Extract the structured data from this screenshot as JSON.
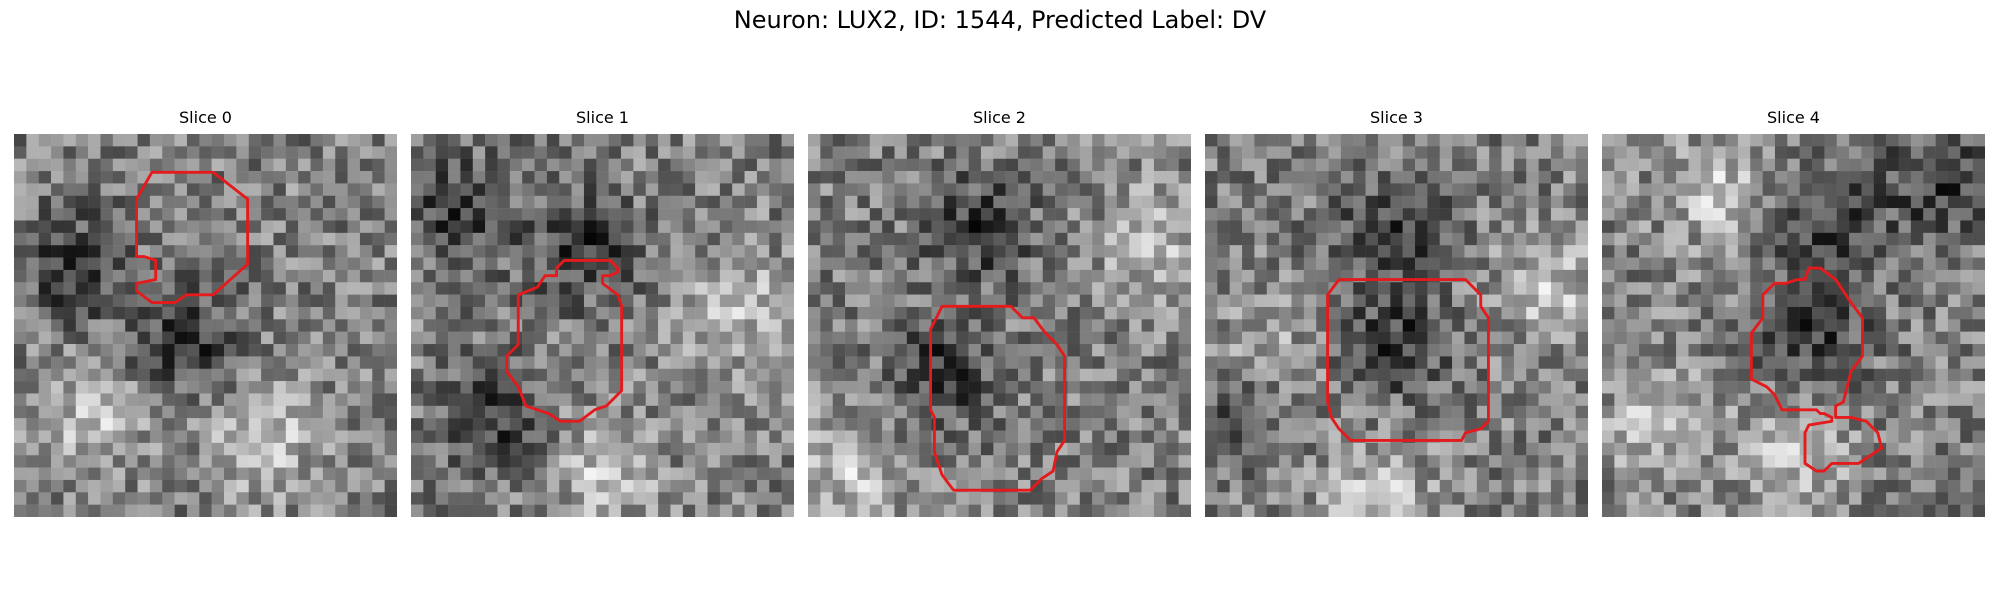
{
  "figure": {
    "title": "Neuron: LUX2, ID: 1544, Predicted Label: DV"
  },
  "contour_color": "#e41a1c",
  "colormap": "gray",
  "panels": [
    {
      "title": "Slice 0",
      "seed": 11,
      "dark_centers": [
        [
          0.45,
          0.55
        ],
        [
          0.15,
          0.35
        ]
      ],
      "light_centers": [
        [
          0.65,
          0.8
        ],
        [
          0.2,
          0.75
        ]
      ],
      "contour": [
        [
          0.36,
          0.1
        ],
        [
          0.52,
          0.1
        ],
        [
          0.61,
          0.17
        ],
        [
          0.61,
          0.34
        ],
        [
          0.52,
          0.42
        ],
        [
          0.45,
          0.42
        ],
        [
          0.42,
          0.44
        ],
        [
          0.36,
          0.44
        ],
        [
          0.32,
          0.41
        ],
        [
          0.32,
          0.39
        ],
        [
          0.37,
          0.38
        ],
        [
          0.37,
          0.33
        ],
        [
          0.34,
          0.32
        ],
        [
          0.32,
          0.32
        ],
        [
          0.32,
          0.17
        ]
      ]
    },
    {
      "title": "Slice 1",
      "seed": 23,
      "dark_centers": [
        [
          0.45,
          0.3
        ],
        [
          0.12,
          0.2
        ],
        [
          0.2,
          0.75
        ]
      ],
      "light_centers": [
        [
          0.85,
          0.45
        ],
        [
          0.5,
          0.88
        ]
      ],
      "contour": [
        [
          0.33,
          0.4
        ],
        [
          0.35,
          0.37
        ],
        [
          0.38,
          0.37
        ],
        [
          0.38,
          0.35
        ],
        [
          0.4,
          0.33
        ],
        [
          0.52,
          0.33
        ],
        [
          0.54,
          0.35
        ],
        [
          0.54,
          0.36
        ],
        [
          0.52,
          0.37
        ],
        [
          0.5,
          0.37
        ],
        [
          0.5,
          0.39
        ],
        [
          0.54,
          0.42
        ],
        [
          0.55,
          0.45
        ],
        [
          0.55,
          0.67
        ],
        [
          0.51,
          0.71
        ],
        [
          0.48,
          0.72
        ],
        [
          0.44,
          0.75
        ],
        [
          0.39,
          0.75
        ],
        [
          0.36,
          0.73
        ],
        [
          0.3,
          0.71
        ],
        [
          0.28,
          0.66
        ],
        [
          0.25,
          0.62
        ],
        [
          0.25,
          0.58
        ],
        [
          0.28,
          0.55
        ],
        [
          0.28,
          0.42
        ]
      ]
    },
    {
      "title": "Slice 2",
      "seed": 37,
      "dark_centers": [
        [
          0.45,
          0.25
        ],
        [
          0.35,
          0.62
        ]
      ],
      "light_centers": [
        [
          0.9,
          0.3
        ],
        [
          0.1,
          0.88
        ]
      ],
      "contour": [
        [
          0.35,
          0.45
        ],
        [
          0.38,
          0.45
        ],
        [
          0.41,
          0.45
        ],
        [
          0.53,
          0.45
        ],
        [
          0.56,
          0.48
        ],
        [
          0.59,
          0.48
        ],
        [
          0.62,
          0.52
        ],
        [
          0.65,
          0.55
        ],
        [
          0.67,
          0.58
        ],
        [
          0.67,
          0.8
        ],
        [
          0.65,
          0.83
        ],
        [
          0.64,
          0.88
        ],
        [
          0.61,
          0.9
        ],
        [
          0.58,
          0.93
        ],
        [
          0.44,
          0.93
        ],
        [
          0.38,
          0.93
        ],
        [
          0.35,
          0.89
        ],
        [
          0.33,
          0.83
        ],
        [
          0.33,
          0.74
        ],
        [
          0.32,
          0.72
        ],
        [
          0.32,
          0.51
        ]
      ]
    },
    {
      "title": "Slice 3",
      "seed": 41,
      "dark_centers": [
        [
          0.5,
          0.55
        ],
        [
          0.48,
          0.25
        ],
        [
          0.1,
          0.7
        ]
      ],
      "light_centers": [
        [
          0.45,
          0.95
        ],
        [
          0.15,
          0.6
        ],
        [
          0.9,
          0.4
        ]
      ],
      "contour": [
        [
          0.32,
          0.42
        ],
        [
          0.35,
          0.38
        ],
        [
          0.38,
          0.38
        ],
        [
          0.68,
          0.38
        ],
        [
          0.72,
          0.42
        ],
        [
          0.72,
          0.45
        ],
        [
          0.74,
          0.48
        ],
        [
          0.74,
          0.75
        ],
        [
          0.72,
          0.77
        ],
        [
          0.68,
          0.78
        ],
        [
          0.67,
          0.8
        ],
        [
          0.38,
          0.8
        ],
        [
          0.35,
          0.77
        ],
        [
          0.33,
          0.74
        ],
        [
          0.32,
          0.7
        ]
      ]
    },
    {
      "title": "Slice 4",
      "seed": 53,
      "dark_centers": [
        [
          0.55,
          0.5
        ],
        [
          0.88,
          0.12
        ],
        [
          0.6,
          0.25
        ]
      ],
      "light_centers": [
        [
          0.15,
          0.75
        ],
        [
          0.5,
          0.85
        ],
        [
          0.3,
          0.15
        ]
      ],
      "contour": [
        [
          0.42,
          0.42
        ],
        [
          0.45,
          0.39
        ],
        [
          0.48,
          0.39
        ],
        [
          0.51,
          0.38
        ],
        [
          0.53,
          0.38
        ],
        [
          0.54,
          0.35
        ],
        [
          0.57,
          0.35
        ],
        [
          0.61,
          0.38
        ],
        [
          0.65,
          0.44
        ],
        [
          0.68,
          0.48
        ],
        [
          0.68,
          0.58
        ],
        [
          0.65,
          0.62
        ],
        [
          0.64,
          0.66
        ],
        [
          0.63,
          0.7
        ],
        [
          0.61,
          0.71
        ],
        [
          0.61,
          0.74
        ],
        [
          0.65,
          0.74
        ],
        [
          0.69,
          0.75
        ],
        [
          0.72,
          0.78
        ],
        [
          0.73,
          0.82
        ],
        [
          0.7,
          0.84
        ],
        [
          0.67,
          0.86
        ],
        [
          0.6,
          0.86
        ],
        [
          0.58,
          0.88
        ],
        [
          0.56,
          0.88
        ],
        [
          0.53,
          0.86
        ],
        [
          0.53,
          0.78
        ],
        [
          0.54,
          0.76
        ],
        [
          0.6,
          0.75
        ],
        [
          0.6,
          0.74
        ],
        [
          0.58,
          0.73
        ],
        [
          0.57,
          0.73
        ],
        [
          0.56,
          0.72
        ],
        [
          0.47,
          0.72
        ],
        [
          0.45,
          0.68
        ],
        [
          0.43,
          0.66
        ],
        [
          0.39,
          0.64
        ],
        [
          0.39,
          0.52
        ],
        [
          0.42,
          0.48
        ]
      ]
    }
  ]
}
